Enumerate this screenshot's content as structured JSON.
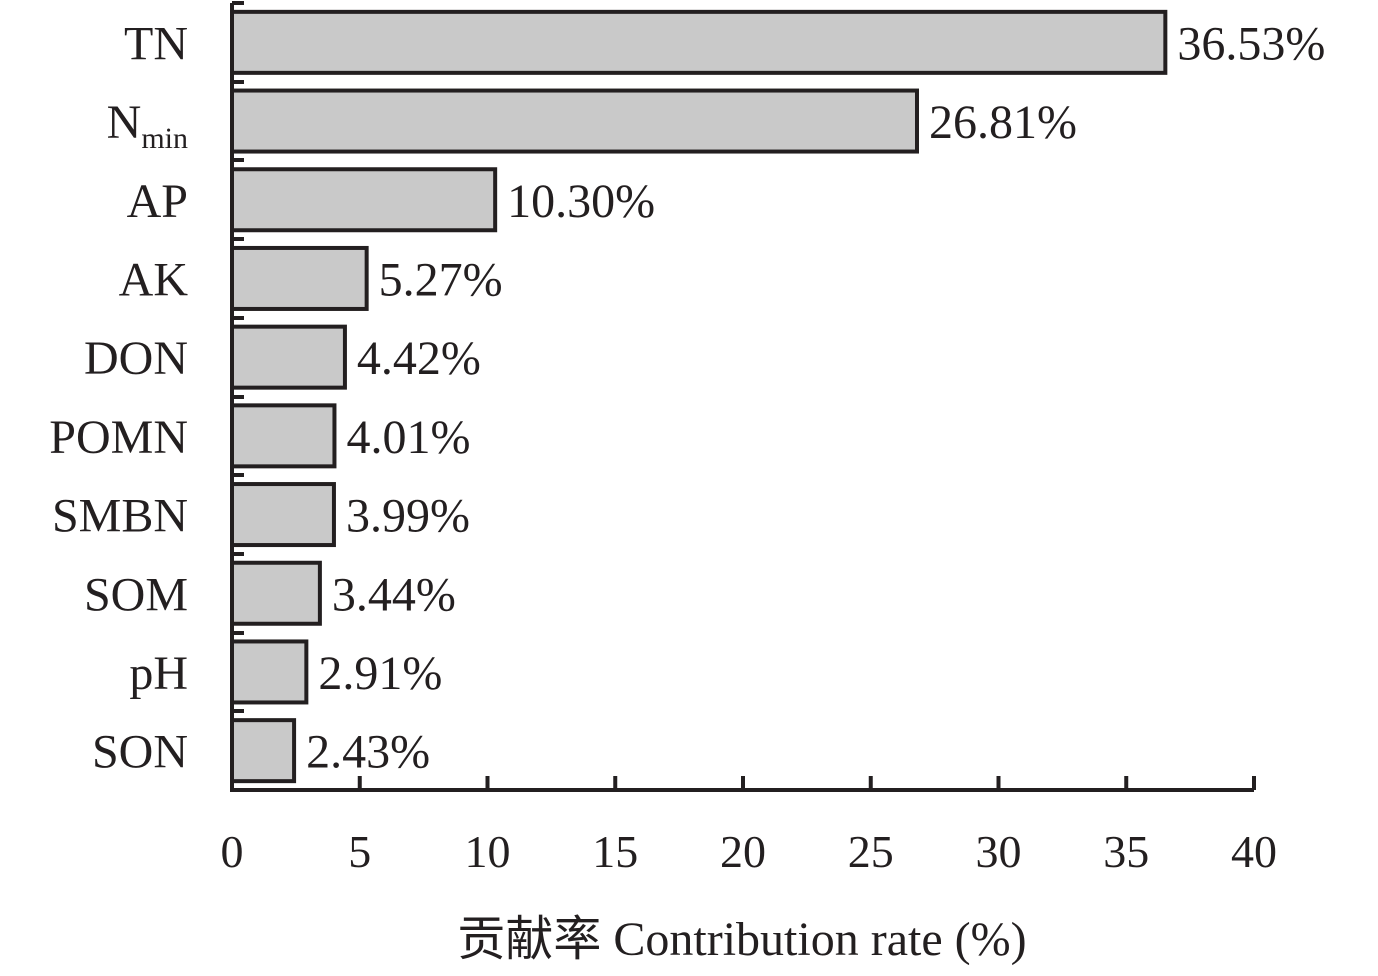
{
  "chart_data": {
    "type": "bar",
    "orientation": "horizontal",
    "categories": [
      {
        "main": "TN",
        "sub": ""
      },
      {
        "main": "N",
        "sub": "min"
      },
      {
        "main": "AP",
        "sub": ""
      },
      {
        "main": "AK",
        "sub": ""
      },
      {
        "main": "DON",
        "sub": ""
      },
      {
        "main": "POMN",
        "sub": ""
      },
      {
        "main": "SMBN",
        "sub": ""
      },
      {
        "main": "SOM",
        "sub": ""
      },
      {
        "main": "pH",
        "sub": ""
      },
      {
        "main": "SON",
        "sub": ""
      }
    ],
    "values": [
      36.53,
      26.81,
      10.3,
      5.27,
      4.42,
      4.01,
      3.99,
      3.44,
      2.91,
      2.43
    ],
    "value_labels": [
      "36.53%",
      "26.81%",
      "10.30%",
      "5.27%",
      "4.42%",
      "4.01%",
      "3.99%",
      "3.44%",
      "2.91%",
      "2.43%"
    ],
    "xlabel": "贡献率 Contribution rate (%)",
    "ylabel": "",
    "xlim": [
      0,
      40
    ],
    "xticks": [
      0,
      5,
      10,
      15,
      20,
      25,
      30,
      35,
      40
    ],
    "xtick_labels": [
      "0",
      "5",
      "10",
      "15",
      "20",
      "25",
      "30",
      "35",
      "40"
    ],
    "grid": false,
    "legend": "none",
    "colors": {
      "bar_fill": "#c9c9c9",
      "bar_stroke": "#231f20",
      "text": "#231f20"
    }
  }
}
